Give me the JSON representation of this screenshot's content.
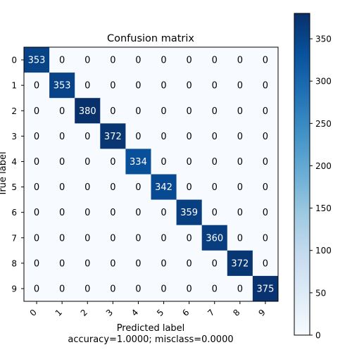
{
  "chart_data": {
    "type": "heatmap",
    "title": "Confusion matrix",
    "xlabel": "Predicted label",
    "ylabel": "True label",
    "x_ticks": [
      "0",
      "1",
      "2",
      "3",
      "4",
      "5",
      "6",
      "7",
      "8",
      "9"
    ],
    "y_ticks": [
      "0",
      "1",
      "2",
      "3",
      "4",
      "5",
      "6",
      "7",
      "8",
      "9"
    ],
    "matrix": [
      [
        353,
        0,
        0,
        0,
        0,
        0,
        0,
        0,
        0,
        0
      ],
      [
        0,
        353,
        0,
        0,
        0,
        0,
        0,
        0,
        0,
        0
      ],
      [
        0,
        0,
        380,
        0,
        0,
        0,
        0,
        0,
        0,
        0
      ],
      [
        0,
        0,
        0,
        372,
        0,
        0,
        0,
        0,
        0,
        0
      ],
      [
        0,
        0,
        0,
        0,
        334,
        0,
        0,
        0,
        0,
        0
      ],
      [
        0,
        0,
        0,
        0,
        0,
        342,
        0,
        0,
        0,
        0
      ],
      [
        0,
        0,
        0,
        0,
        0,
        0,
        359,
        0,
        0,
        0
      ],
      [
        0,
        0,
        0,
        0,
        0,
        0,
        0,
        360,
        0,
        0
      ],
      [
        0,
        0,
        0,
        0,
        0,
        0,
        0,
        0,
        372,
        0
      ],
      [
        0,
        0,
        0,
        0,
        0,
        0,
        0,
        0,
        0,
        375
      ]
    ],
    "colormap": "Blues",
    "color_range": [
      0,
      380
    ],
    "colorbar_ticks": [
      0,
      50,
      100,
      150,
      200,
      250,
      300,
      350
    ],
    "caption": "accuracy=1.0000; misclass=0.0000",
    "grid": false
  }
}
